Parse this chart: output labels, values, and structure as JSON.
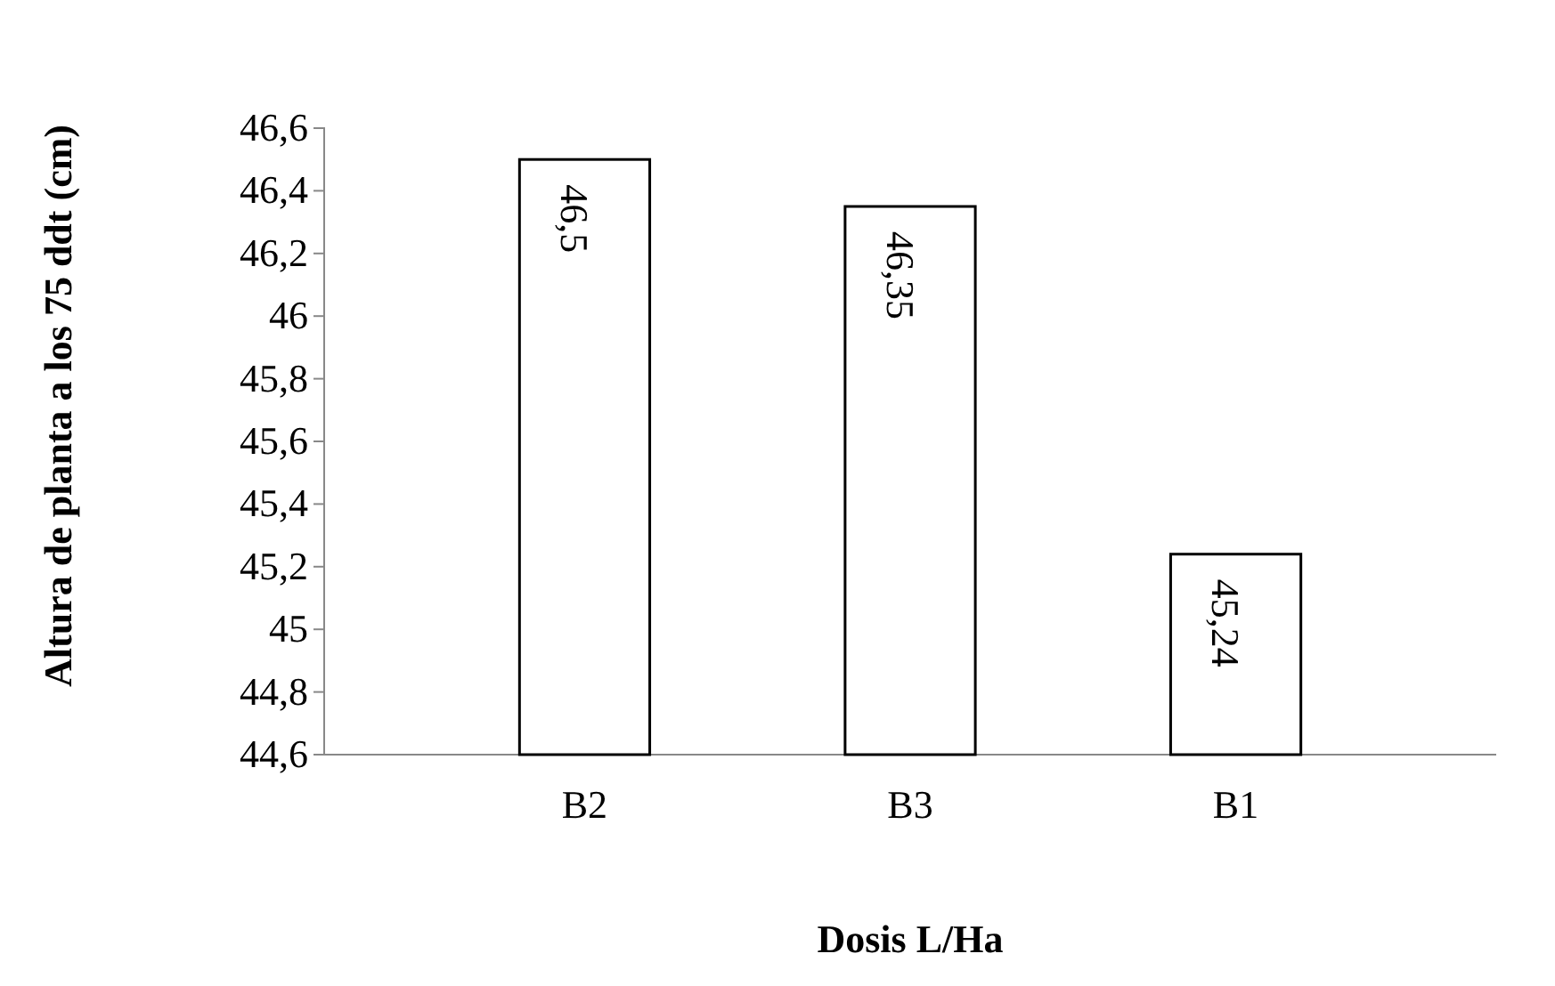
{
  "chart_data": {
    "type": "bar",
    "xlabel": "Dosis L/Ha",
    "ylabel": "Altura de planta a los 75 ddt (cm)",
    "categories": [
      "B2",
      "B3",
      "B1"
    ],
    "values": [
      46.5,
      46.35,
      45.24
    ],
    "value_labels": [
      "46,5",
      "46,35",
      "45,24"
    ],
    "color": "#ffffff",
    "ylim": [
      44.6,
      46.6
    ],
    "yticks": [
      {
        "value": 44.6,
        "label": "44,6"
      },
      {
        "value": 44.8,
        "label": "44,8"
      },
      {
        "value": 45,
        "label": "45"
      },
      {
        "value": 45.2,
        "label": "45,2"
      },
      {
        "value": 45.4,
        "label": "45,4"
      },
      {
        "value": 45.6,
        "label": "45,6"
      },
      {
        "value": 45.8,
        "label": "45,8"
      },
      {
        "value": 46,
        "label": "46"
      },
      {
        "value": 46.2,
        "label": "46,2"
      },
      {
        "value": 46.4,
        "label": "46,4"
      },
      {
        "value": 46.6,
        "label": "46,6"
      }
    ],
    "relative": false
  }
}
